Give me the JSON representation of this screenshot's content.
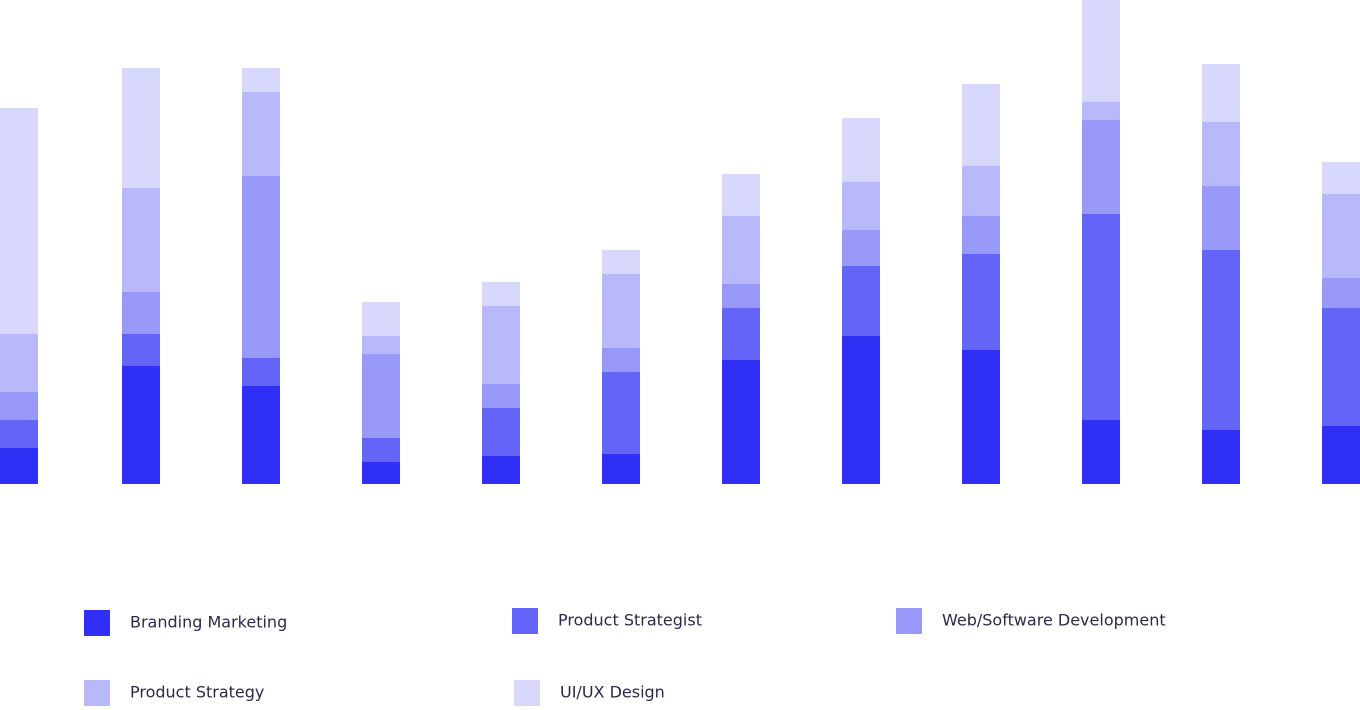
{
  "chart_data": {
    "type": "stacked-bar",
    "categories": [
      null,
      null,
      null,
      null,
      null,
      null,
      null,
      null,
      null,
      null,
      null,
      null
    ],
    "ylim": [
      0,
      484
    ],
    "series": [
      {
        "name": "Branding Marketing",
        "color": "#2f2ff5",
        "values": [
          36,
          118,
          98,
          22,
          28,
          30,
          124,
          148,
          134,
          64,
          54,
          58
        ]
      },
      {
        "name": "Product Strategist",
        "color": "#6464f8",
        "values": [
          28,
          32,
          28,
          24,
          48,
          82,
          52,
          70,
          96,
          206,
          180,
          118
        ]
      },
      {
        "name": "Web/Software Development",
        "color": "#9898f9",
        "values": [
          28,
          42,
          182,
          84,
          24,
          24,
          24,
          36,
          38,
          94,
          64,
          30
        ]
      },
      {
        "name": "Product Strategy",
        "color": "#b8b8fa",
        "values": [
          58,
          104,
          84,
          18,
          78,
          74,
          68,
          48,
          50,
          18,
          64,
          84
        ]
      },
      {
        "name": "UI/UX Design",
        "color": "#d8d8fc",
        "values": [
          226,
          120,
          24,
          34,
          24,
          24,
          42,
          64,
          82,
          102,
          58,
          32
        ]
      }
    ]
  }
}
